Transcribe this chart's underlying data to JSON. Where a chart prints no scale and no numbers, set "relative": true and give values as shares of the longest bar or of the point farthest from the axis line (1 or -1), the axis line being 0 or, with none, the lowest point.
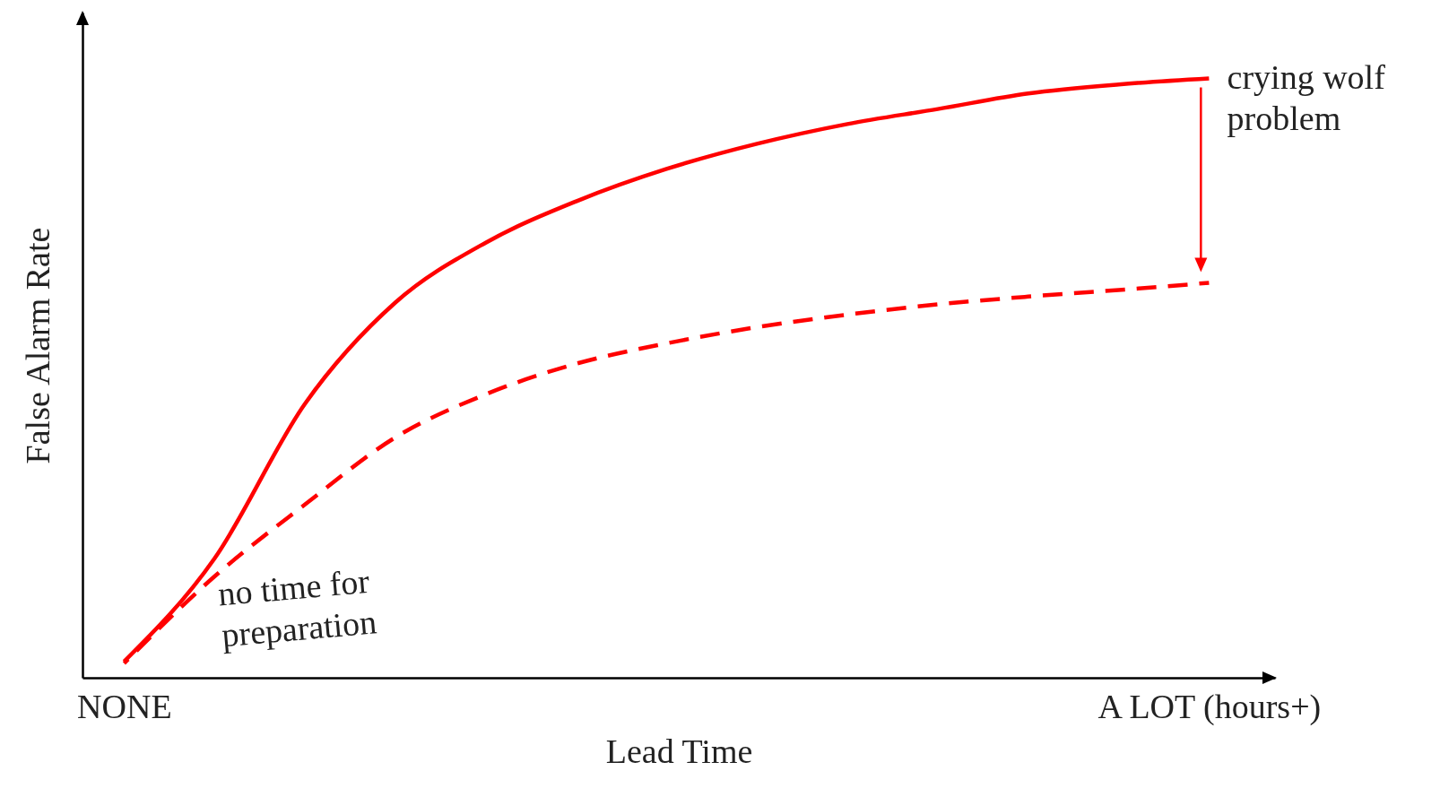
{
  "chart_data": {
    "type": "line",
    "xlabel": "Lead Time",
    "ylabel": "False Alarm Rate",
    "relative": true,
    "categories": [
      "NONE",
      null,
      null,
      null,
      null,
      null,
      null,
      null,
      null,
      null,
      null,
      null,
      "A LOT (hours+)"
    ],
    "series": [
      {
        "color": "#ff0000",
        "line_style": "solid",
        "values": [
          0.027,
          0.199,
          0.457,
          0.626,
          0.726,
          0.795,
          0.849,
          0.891,
          0.924,
          0.949,
          0.975,
          0.99,
          1
        ]
      },
      {
        "color": "#ff0000",
        "line_style": "dashed",
        "values": [
          0.024,
          0.169,
          0.289,
          0.401,
          0.473,
          0.524,
          0.558,
          0.585,
          0.606,
          0.623,
          0.636,
          0.647,
          0.659
        ]
      }
    ],
    "annotations": [
      "crying wolf problem",
      "no time for preparation"
    ],
    "grid": false,
    "marker": "none"
  }
}
